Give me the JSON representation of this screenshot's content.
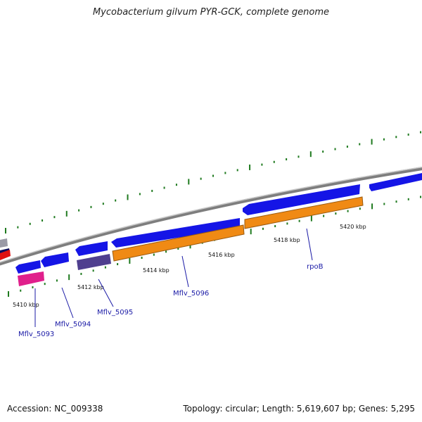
{
  "title": "Mycobacterium gilvum PYR-GCK, complete genome",
  "footer": {
    "accession": "Accession: NC_009338",
    "summary": "Topology: circular; Length: 5,619,607 bp; Genes: 5,295"
  },
  "colors": {
    "backbone": "#8a8a8a",
    "cds": "#1515e6",
    "rna_orange": "#f08a14",
    "cds_purple": "#4f3f8f",
    "cds_pink": "#e0208c",
    "cds_red": "#e01010",
    "tick": "#1f7a1f",
    "label": "#1a1aa6"
  },
  "ticks": [
    {
      "label": "5410 kbp"
    },
    {
      "label": "5412 kbp"
    },
    {
      "label": "5414 kbp"
    },
    {
      "label": "5416 kbp"
    },
    {
      "label": "5418 kbp"
    },
    {
      "label": "5420 kbp"
    }
  ],
  "gene_labels": [
    {
      "label": "Mflv_5093"
    },
    {
      "label": "Mflv_5094"
    },
    {
      "label": "Mflv_5095"
    },
    {
      "label": "Mflv_5096"
    },
    {
      "label": "rpoB"
    }
  ]
}
